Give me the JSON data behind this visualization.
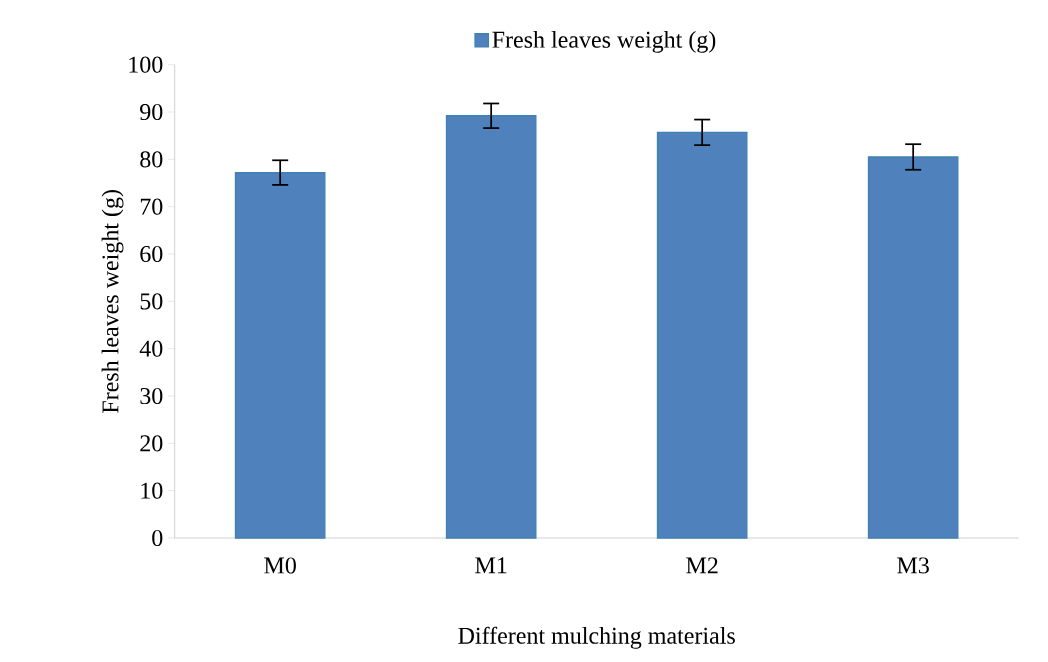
{
  "chart_data": {
    "type": "bar",
    "xlabel": "Different mulching materials",
    "ylabel": "Fresh leaves weight (g)",
    "categories": [
      "M0",
      "M1",
      "M2",
      "M3"
    ],
    "series": [
      {
        "name": "Fresh leaves weight (g)",
        "color": "#4f81bd",
        "values": [
          77.2,
          89.2,
          85.7,
          80.5
        ],
        "errors": [
          2.6,
          2.6,
          2.7,
          2.7
        ]
      }
    ],
    "ylim": [
      0,
      100
    ],
    "yticks": [
      0,
      10,
      20,
      30,
      40,
      50,
      60,
      70,
      80,
      90,
      100
    ],
    "grid": false,
    "legend": "top"
  }
}
